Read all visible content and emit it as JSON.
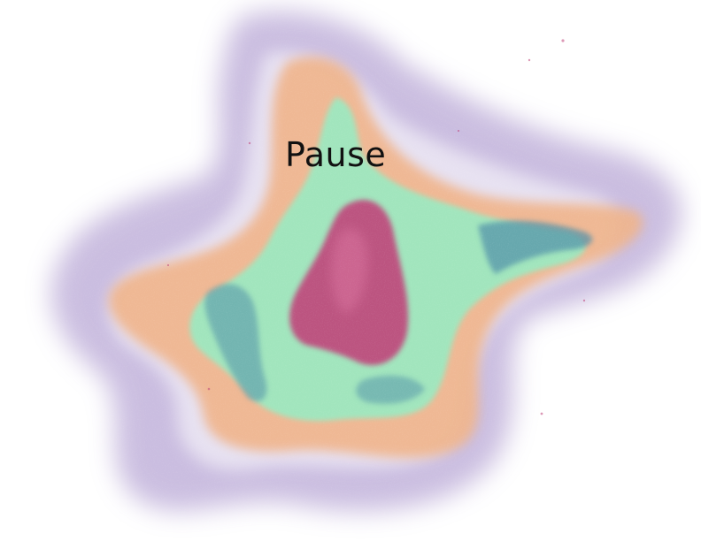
{
  "label": {
    "text": "Pause"
  },
  "colors": {
    "outer_glow": "#b9a8d6",
    "orange_band": "#f0b48a",
    "green_band": "#9de8c0",
    "teal_streak": "#4f8fa8",
    "magenta_core": "#c0447a",
    "text": "#111111"
  }
}
